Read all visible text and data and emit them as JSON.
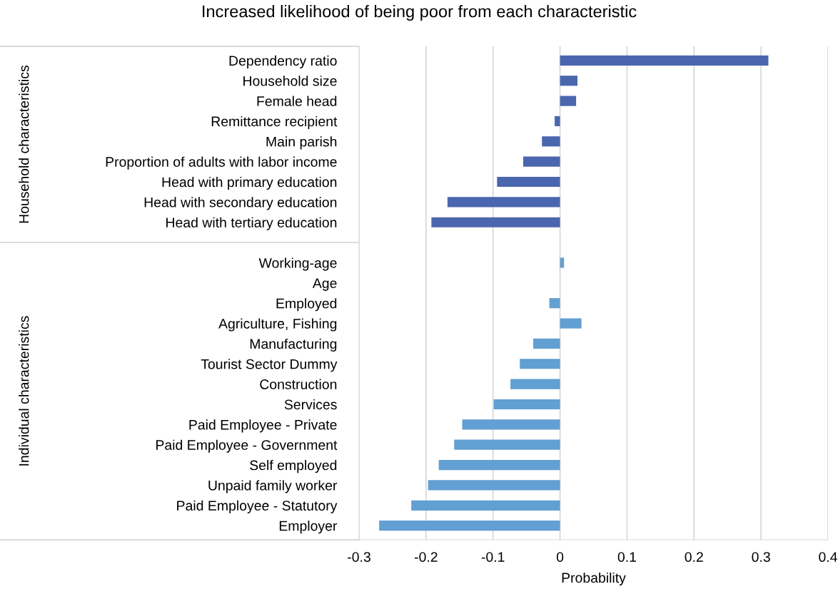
{
  "chart_data": {
    "type": "bar",
    "orientation": "horizontal",
    "title": "Increased likelihood of being poor from each characteristic",
    "xlabel": "Probability",
    "categories": [
      "Dependency ratio",
      "Household size",
      "Female head",
      "Remittance recipient",
      "Main parish",
      "Proportion of adults with labor income",
      "Head with primary education",
      "Head with secondary education",
      "Head with tertiary education",
      null,
      "Working-age",
      "Age",
      "Employed",
      "Agriculture, Fishing",
      "Manufacturing",
      "Tourist Sector Dummy",
      "Construction",
      "Services",
      "Paid Employee - Private",
      "Paid Employee - Government",
      "Self employed",
      "Unpaid family worker",
      "Paid Employee - Statutory",
      "Employer"
    ],
    "values": [
      0.311,
      0.026,
      0.024,
      -0.008,
      -0.027,
      -0.055,
      -0.094,
      -0.168,
      -0.192,
      null,
      0.006,
      0.0,
      -0.016,
      0.032,
      -0.04,
      -0.06,
      -0.074,
      -0.099,
      -0.146,
      -0.158,
      -0.181,
      -0.197,
      -0.222,
      -0.27
    ],
    "colors": [
      "#4a66ae",
      "#4a66ae",
      "#4a66ae",
      "#4a66ae",
      "#4a66ae",
      "#4a66ae",
      "#4a66ae",
      "#4a66ae",
      "#4a66ae",
      null,
      "#629fd2",
      "#629fd2",
      "#629fd2",
      "#629fd2",
      "#629fd2",
      "#629fd2",
      "#629fd2",
      "#629fd2",
      "#629fd2",
      "#629fd2",
      "#629fd2",
      "#629fd2",
      "#629fd2",
      "#629fd2"
    ],
    "xlim": [
      -0.3,
      0.4
    ],
    "xticks": [
      -0.3,
      -0.2,
      -0.1,
      0,
      0.1,
      0.2,
      0.3,
      0.4
    ],
    "grid": "x",
    "annotations": [
      "Household characteristics",
      "Individual characteristics"
    ]
  }
}
